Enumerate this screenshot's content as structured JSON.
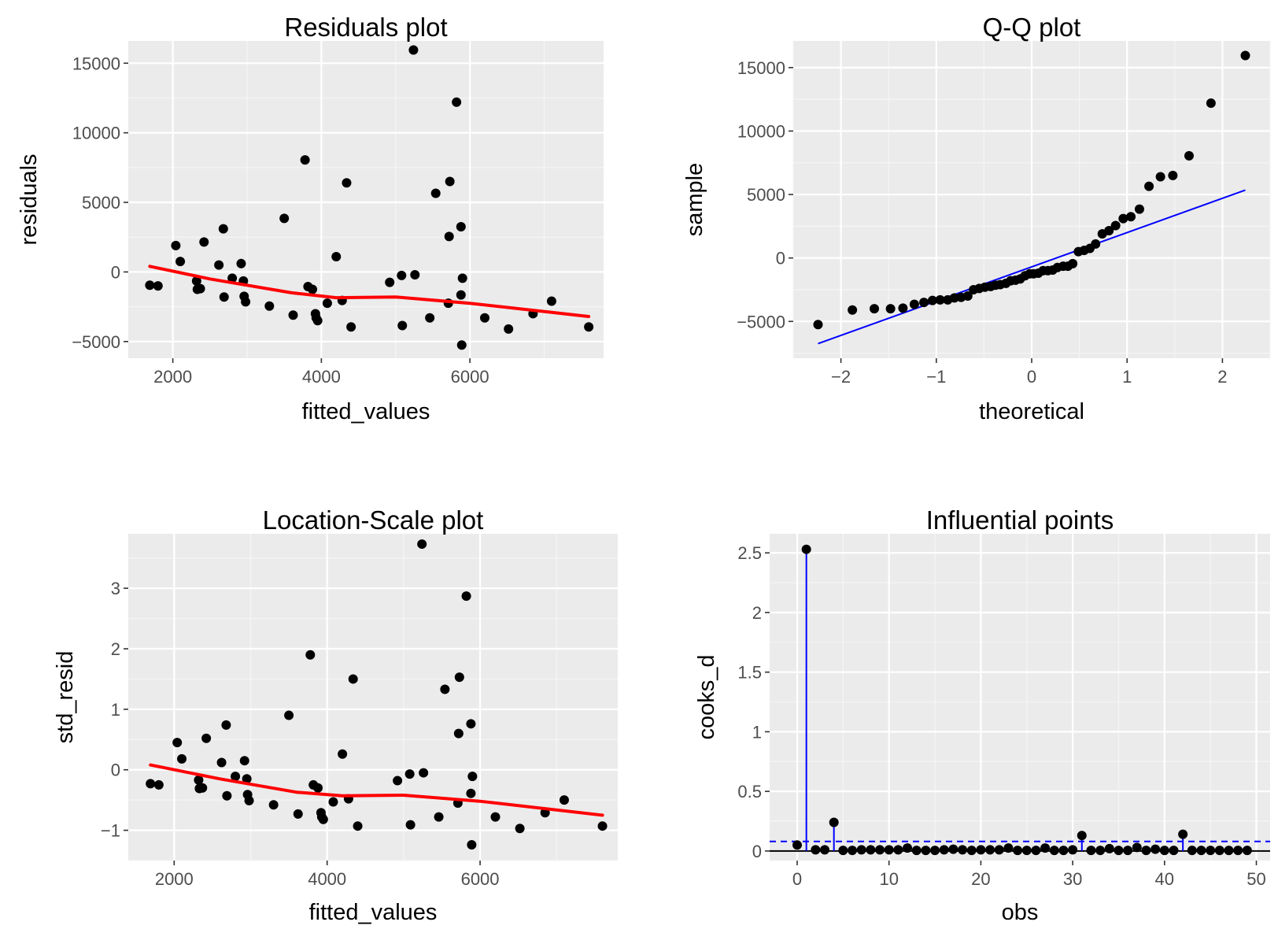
{
  "colors": {
    "panel_background": "#ebebeb",
    "grid_major": "#ffffff",
    "grid_minor": "#f5f5f5",
    "points": "#000000",
    "smooth_line": "#ff0000",
    "reference_line": "#0000ff",
    "baseline": "#000000",
    "tick_text": "#4d4d4d"
  },
  "chart_data": [
    {
      "type": "scatter",
      "title": "Residuals plot",
      "xlabel": "fitted_values",
      "ylabel": "residuals",
      "xlim": [
        1400,
        7800
      ],
      "ylim": [
        -6200,
        16600
      ],
      "xticks": [
        2000,
        4000,
        6000
      ],
      "xtick_labels": [
        "2000",
        "4000",
        "6000"
      ],
      "yticks": [
        -5000,
        0,
        5000,
        10000,
        15000
      ],
      "ytick_labels": [
        "−5000",
        "0",
        "5000",
        "10000",
        "15000"
      ],
      "grid": true,
      "points": [
        [
          1690,
          -950
        ],
        [
          1800,
          -1000
        ],
        [
          2040,
          1900
        ],
        [
          2100,
          750
        ],
        [
          2320,
          -650
        ],
        [
          2330,
          -1250
        ],
        [
          2370,
          -1200
        ],
        [
          2420,
          2150
        ],
        [
          2620,
          500
        ],
        [
          2680,
          3100
        ],
        [
          2690,
          -1800
        ],
        [
          2800,
          -450
        ],
        [
          2920,
          600
        ],
        [
          2950,
          -650
        ],
        [
          2960,
          -1750
        ],
        [
          2980,
          -2150
        ],
        [
          3300,
          -2450
        ],
        [
          3500,
          3850
        ],
        [
          3620,
          -3100
        ],
        [
          3780,
          8050
        ],
        [
          3820,
          -1050
        ],
        [
          3880,
          -1250
        ],
        [
          3920,
          -3000
        ],
        [
          3930,
          -3300
        ],
        [
          3950,
          -3500
        ],
        [
          4080,
          -2250
        ],
        [
          4200,
          1100
        ],
        [
          4280,
          -2050
        ],
        [
          4340,
          6400
        ],
        [
          4400,
          -3950
        ],
        [
          4920,
          -750
        ],
        [
          5080,
          -250
        ],
        [
          5090,
          -3850
        ],
        [
          5240,
          15950
        ],
        [
          5260,
          -200
        ],
        [
          5460,
          -3300
        ],
        [
          5540,
          5650
        ],
        [
          5710,
          -2250
        ],
        [
          5720,
          2550
        ],
        [
          5730,
          6500
        ],
        [
          5820,
          12200
        ],
        [
          5880,
          3250
        ],
        [
          5880,
          -1650
        ],
        [
          5890,
          -5250
        ],
        [
          5900,
          -450
        ],
        [
          6200,
          -3300
        ],
        [
          6520,
          -4100
        ],
        [
          6850,
          -3000
        ],
        [
          7100,
          -2100
        ],
        [
          7600,
          -3950
        ]
      ],
      "smooth": [
        [
          1690,
          400
        ],
        [
          2500,
          -500
        ],
        [
          3600,
          -1500
        ],
        [
          4200,
          -1850
        ],
        [
          5000,
          -1800
        ],
        [
          6000,
          -2250
        ],
        [
          7600,
          -3200
        ]
      ]
    },
    {
      "type": "scatter",
      "title": "Q-Q plot",
      "xlabel": "theoretical",
      "ylabel": "sample",
      "xlim": [
        -2.5,
        2.5
      ],
      "ylim": [
        -7900,
        17100
      ],
      "xticks": [
        -2,
        -1,
        0,
        1,
        2
      ],
      "xtick_labels": [
        "−2",
        "−1",
        "0",
        "1",
        "2"
      ],
      "yticks": [
        -5000,
        0,
        5000,
        10000,
        15000
      ],
      "ytick_labels": [
        "−5000",
        "0",
        "5000",
        "10000",
        "15000"
      ],
      "grid": true,
      "points": [
        [
          -2.24,
          -5250
        ],
        [
          -1.88,
          -4100
        ],
        [
          -1.65,
          -4000
        ],
        [
          -1.48,
          -4000
        ],
        [
          -1.35,
          -3950
        ],
        [
          -1.23,
          -3650
        ],
        [
          -1.13,
          -3500
        ],
        [
          -1.04,
          -3350
        ],
        [
          -0.96,
          -3300
        ],
        [
          -0.88,
          -3300
        ],
        [
          -0.81,
          -3150
        ],
        [
          -0.74,
          -3100
        ],
        [
          -0.67,
          -3000
        ],
        [
          -0.61,
          -2500
        ],
        [
          -0.55,
          -2400
        ],
        [
          -0.49,
          -2300
        ],
        [
          -0.43,
          -2250
        ],
        [
          -0.38,
          -2150
        ],
        [
          -0.33,
          -2100
        ],
        [
          -0.27,
          -2000
        ],
        [
          -0.22,
          -1800
        ],
        [
          -0.17,
          -1750
        ],
        [
          -0.12,
          -1650
        ],
        [
          -0.07,
          -1400
        ],
        [
          -0.02,
          -1250
        ],
        [
          0.02,
          -1250
        ],
        [
          0.07,
          -1200
        ],
        [
          0.12,
          -1000
        ],
        [
          0.17,
          -1000
        ],
        [
          0.22,
          -950
        ],
        [
          0.27,
          -750
        ],
        [
          0.33,
          -650
        ],
        [
          0.38,
          -650
        ],
        [
          0.43,
          -450
        ],
        [
          0.49,
          500
        ],
        [
          0.55,
          600
        ],
        [
          0.61,
          750
        ],
        [
          0.67,
          1100
        ],
        [
          0.74,
          1900
        ],
        [
          0.81,
          2150
        ],
        [
          0.88,
          2550
        ],
        [
          0.96,
          3100
        ],
        [
          1.04,
          3250
        ],
        [
          1.13,
          3850
        ],
        [
          1.23,
          5650
        ],
        [
          1.35,
          6400
        ],
        [
          1.48,
          6500
        ],
        [
          1.65,
          8050
        ],
        [
          1.88,
          12200
        ],
        [
          2.24,
          15950
        ]
      ],
      "reference_line": [
        [
          -2.24,
          -6750
        ],
        [
          2.24,
          5350
        ]
      ]
    },
    {
      "type": "scatter",
      "title": "Location-Scale plot",
      "xlabel": "fitted_values",
      "ylabel": "std_resid",
      "xlim": [
        1400,
        7800
      ],
      "ylim": [
        -1.5,
        3.9
      ],
      "xticks": [
        2000,
        4000,
        6000
      ],
      "xtick_labels": [
        "2000",
        "4000",
        "6000"
      ],
      "yticks": [
        -1,
        0,
        1,
        2,
        3
      ],
      "ytick_labels": [
        "−1",
        "0",
        "1",
        "2",
        "3"
      ],
      "grid": true,
      "points": [
        [
          1690,
          -0.23
        ],
        [
          1800,
          -0.25
        ],
        [
          2040,
          0.45
        ],
        [
          2100,
          0.18
        ],
        [
          2320,
          -0.17
        ],
        [
          2330,
          -0.31
        ],
        [
          2370,
          -0.3
        ],
        [
          2420,
          0.52
        ],
        [
          2620,
          0.12
        ],
        [
          2680,
          0.74
        ],
        [
          2690,
          -0.43
        ],
        [
          2800,
          -0.11
        ],
        [
          2920,
          0.15
        ],
        [
          2950,
          -0.15
        ],
        [
          2960,
          -0.41
        ],
        [
          2980,
          -0.51
        ],
        [
          3300,
          -0.58
        ],
        [
          3500,
          0.9
        ],
        [
          3620,
          -0.73
        ],
        [
          3780,
          1.9
        ],
        [
          3820,
          -0.25
        ],
        [
          3880,
          -0.3
        ],
        [
          3920,
          -0.71
        ],
        [
          3930,
          -0.78
        ],
        [
          3950,
          -0.82
        ],
        [
          4080,
          -0.53
        ],
        [
          4200,
          0.26
        ],
        [
          4280,
          -0.48
        ],
        [
          4340,
          1.5
        ],
        [
          4400,
          -0.93
        ],
        [
          4920,
          -0.18
        ],
        [
          5080,
          -0.07
        ],
        [
          5090,
          -0.91
        ],
        [
          5240,
          3.73
        ],
        [
          5260,
          -0.05
        ],
        [
          5460,
          -0.78
        ],
        [
          5540,
          1.33
        ],
        [
          5710,
          -0.55
        ],
        [
          5720,
          0.6
        ],
        [
          5730,
          1.53
        ],
        [
          5820,
          2.87
        ],
        [
          5880,
          0.76
        ],
        [
          5880,
          -0.39
        ],
        [
          5890,
          -1.24
        ],
        [
          5900,
          -0.11
        ],
        [
          6200,
          -0.78
        ],
        [
          6520,
          -0.97
        ],
        [
          6850,
          -0.71
        ],
        [
          7100,
          -0.5
        ],
        [
          7600,
          -0.93
        ]
      ],
      "smooth": [
        [
          1690,
          0.08
        ],
        [
          2600,
          -0.15
        ],
        [
          3600,
          -0.37
        ],
        [
          4200,
          -0.43
        ],
        [
          5000,
          -0.42
        ],
        [
          6000,
          -0.52
        ],
        [
          7600,
          -0.75
        ]
      ]
    },
    {
      "type": "scatter",
      "title": "Influential points",
      "xlabel": "obs",
      "ylabel": "cooks_d",
      "xlim": [
        -3,
        51.5
      ],
      "ylim": [
        -0.08,
        2.66
      ],
      "xticks": [
        0,
        10,
        20,
        30,
        40,
        50
      ],
      "xtick_labels": [
        "0",
        "10",
        "20",
        "30",
        "40",
        "50"
      ],
      "yticks": [
        0,
        0.5,
        1,
        1.5,
        2,
        2.5
      ],
      "ytick_labels": [
        "0",
        "0.5",
        "1",
        "1.5",
        "2",
        "2.5"
      ],
      "grid": true,
      "threshold": 0.08,
      "stems": "vertical line from 0 to value for points above threshold",
      "points": [
        [
          0,
          0.05
        ],
        [
          1,
          2.53
        ],
        [
          2,
          0.01
        ],
        [
          3,
          0.01
        ],
        [
          4,
          0.24
        ],
        [
          5,
          0.005
        ],
        [
          6,
          0.005
        ],
        [
          7,
          0.01
        ],
        [
          8,
          0.01
        ],
        [
          9,
          0.01
        ],
        [
          10,
          0.01
        ],
        [
          11,
          0.01
        ],
        [
          12,
          0.025
        ],
        [
          13,
          0.005
        ],
        [
          14,
          0.005
        ],
        [
          15,
          0.005
        ],
        [
          16,
          0.01
        ],
        [
          17,
          0.015
        ],
        [
          18,
          0.01
        ],
        [
          19,
          0.005
        ],
        [
          20,
          0.01
        ],
        [
          21,
          0.01
        ],
        [
          22,
          0.01
        ],
        [
          23,
          0.025
        ],
        [
          24,
          0.005
        ],
        [
          25,
          0.005
        ],
        [
          26,
          0.005
        ],
        [
          27,
          0.025
        ],
        [
          28,
          0.005
        ],
        [
          29,
          0.005
        ],
        [
          30,
          0.01
        ],
        [
          31,
          0.13
        ],
        [
          32,
          0.005
        ],
        [
          33,
          0.005
        ],
        [
          34,
          0.02
        ],
        [
          35,
          0.005
        ],
        [
          36,
          0.005
        ],
        [
          37,
          0.03
        ],
        [
          38,
          0.005
        ],
        [
          39,
          0.015
        ],
        [
          40,
          0.005
        ],
        [
          41,
          0.005
        ],
        [
          42,
          0.14
        ],
        [
          43,
          0.005
        ],
        [
          44,
          0.005
        ],
        [
          45,
          0.005
        ],
        [
          46,
          0.005
        ],
        [
          47,
          0.005
        ],
        [
          48,
          0.005
        ],
        [
          49,
          0.005
        ]
      ]
    }
  ]
}
